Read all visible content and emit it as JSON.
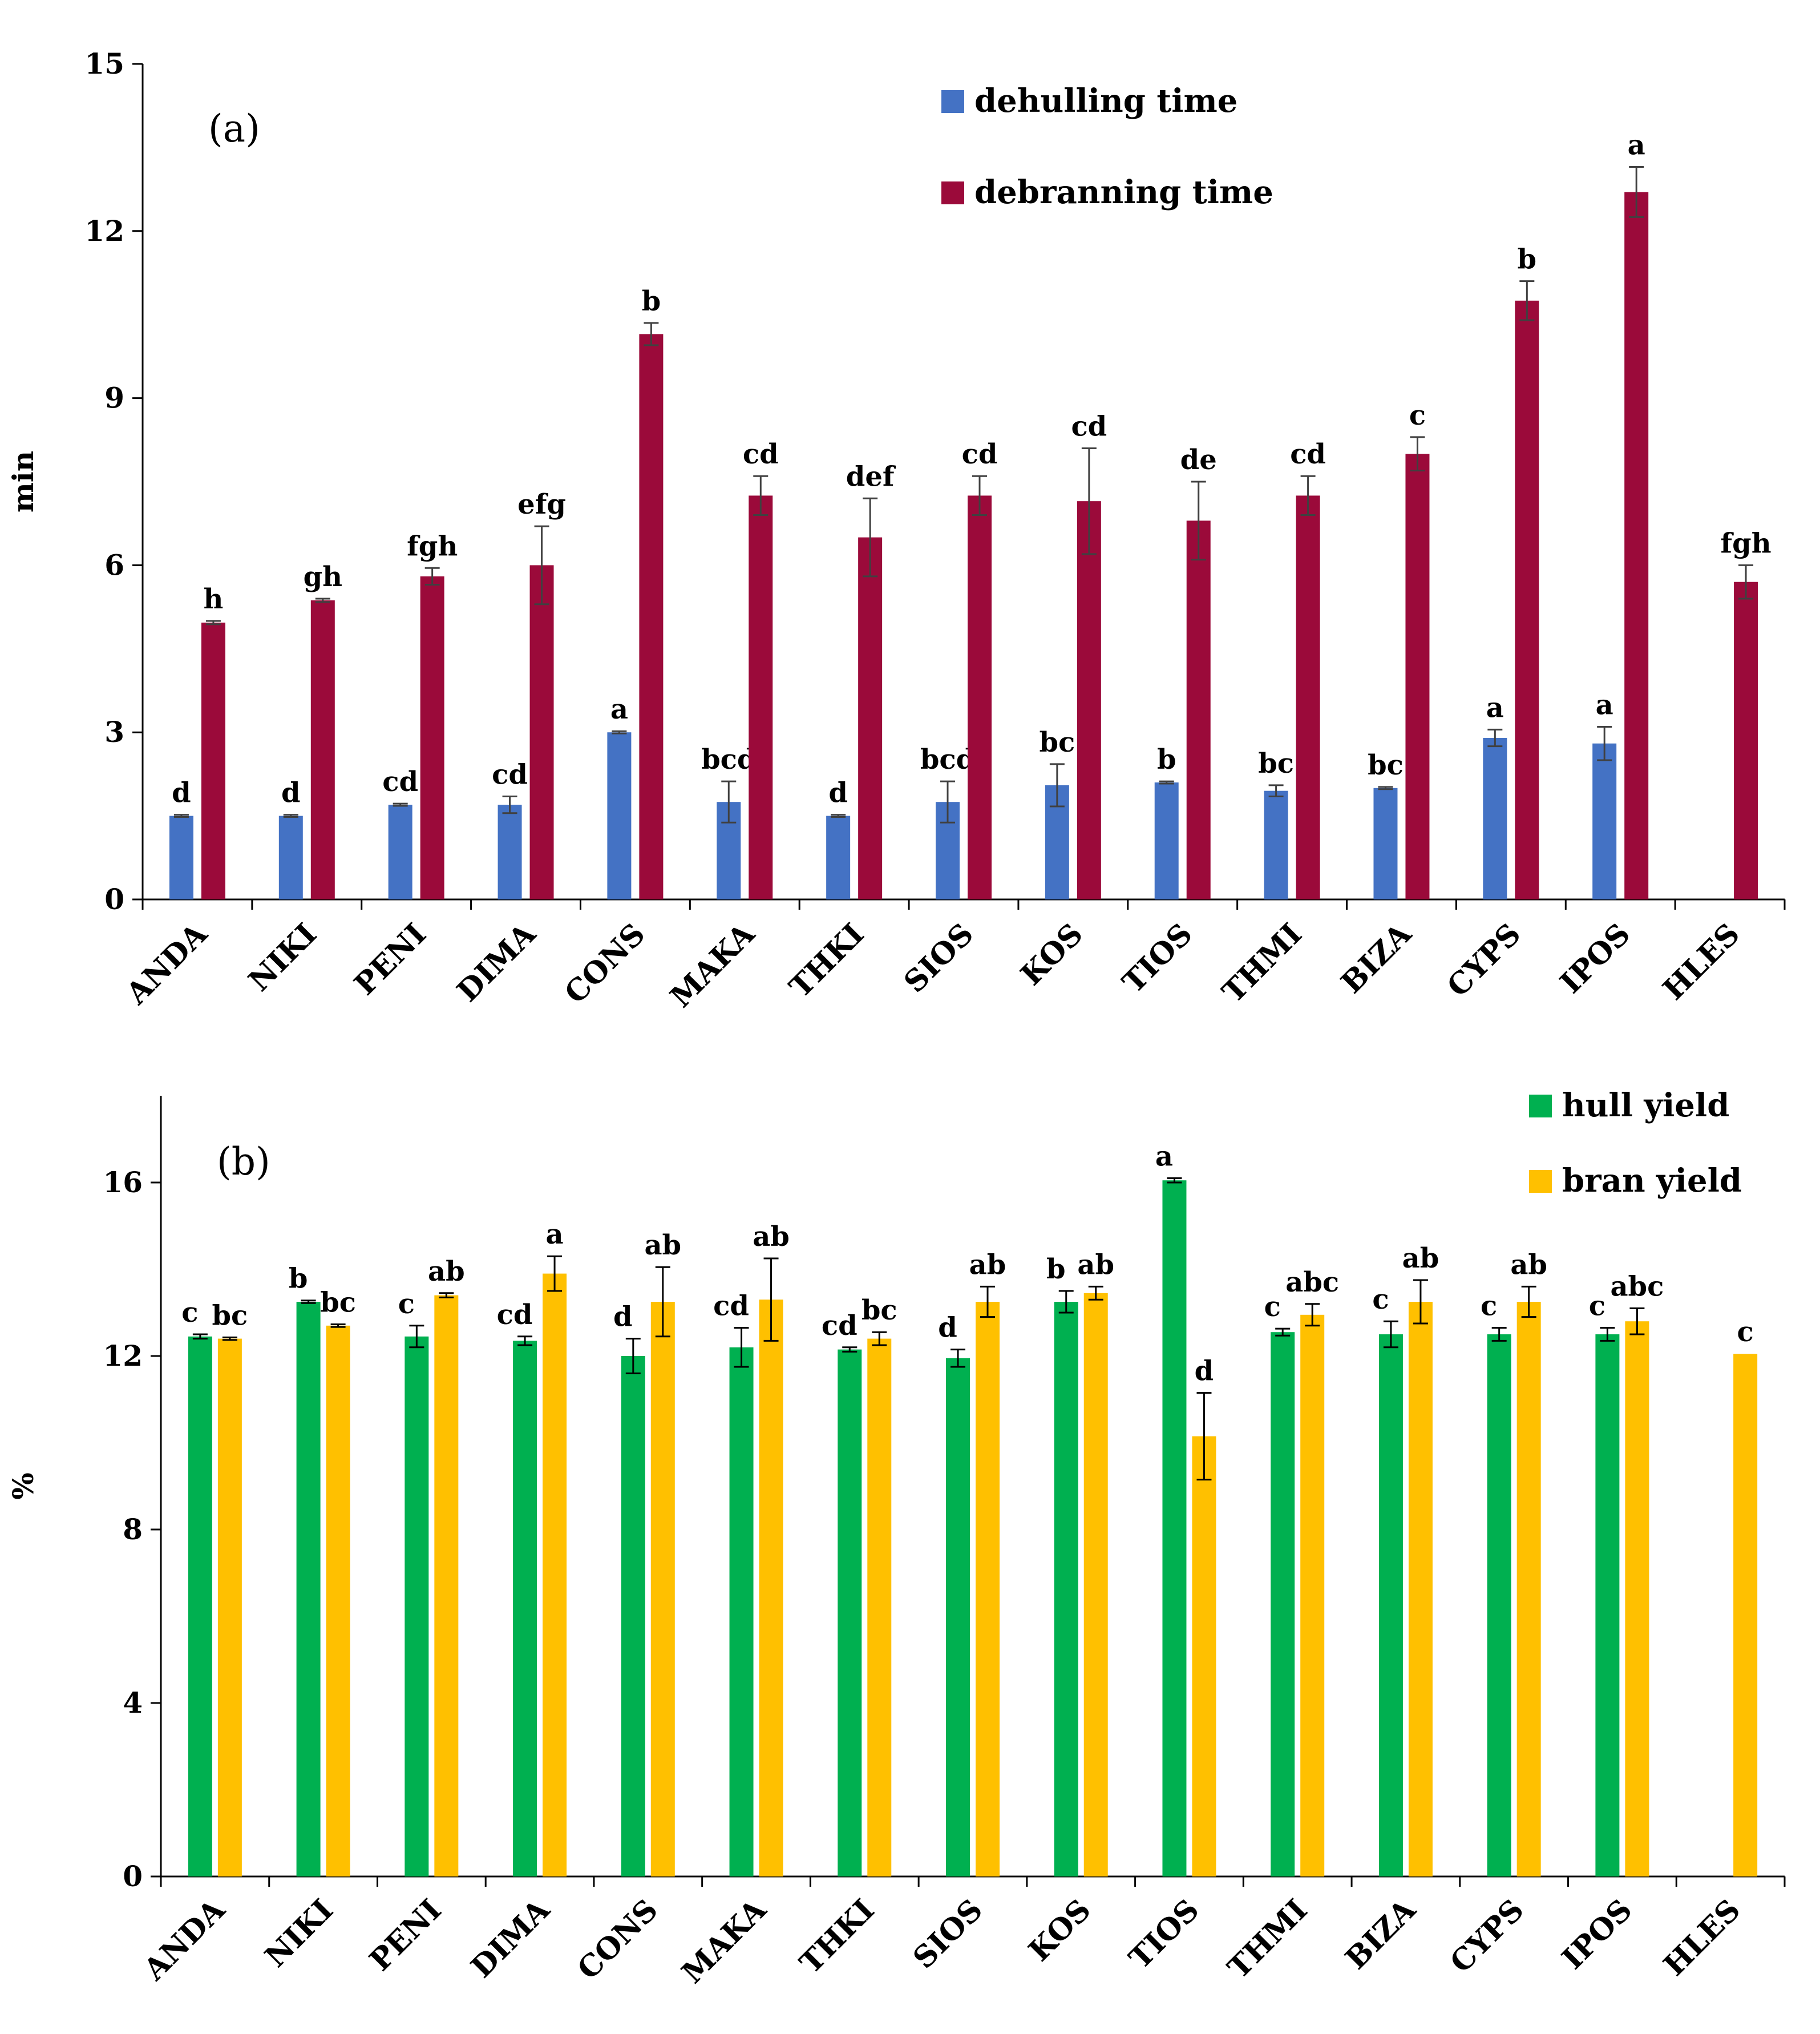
{
  "chart_data": [
    {
      "type": "bar",
      "panel": "(a)",
      "ylabel": "min",
      "ylim": [
        0,
        15
      ],
      "yticks": [
        "0",
        "3",
        "6",
        "9",
        "12",
        "15"
      ],
      "categories": [
        "ANDA",
        "NIKI",
        "PENI",
        "DIMA",
        "CONS",
        "MAKA",
        "THKI",
        "SIOS",
        "KOS",
        "TIOS",
        "THMI",
        "BIZA",
        "CYPS",
        "IPOS",
        "HLES"
      ],
      "legend_position": "top-right",
      "series": [
        {
          "name": "dehulling time",
          "color": "#4472C4",
          "values": [
            1.5,
            1.5,
            1.7,
            1.7,
            3.0,
            1.75,
            1.5,
            1.75,
            2.05,
            2.1,
            1.95,
            2.0,
            2.9,
            2.8,
            null
          ],
          "errors": [
            0.02,
            0.02,
            0.02,
            0.15,
            0.02,
            0.37,
            0.02,
            0.37,
            0.38,
            0.02,
            0.1,
            0.02,
            0.15,
            0.3,
            null
          ],
          "sig": [
            "d",
            "d",
            "cd",
            "cd",
            "a",
            "bcd",
            "d",
            "bcd",
            "bc",
            "b",
            "bc",
            "bc",
            "a",
            "a",
            ""
          ]
        },
        {
          "name": "debranning time",
          "color": "#9B0A3A",
          "values": [
            4.97,
            5.37,
            5.8,
            6.0,
            10.15,
            7.25,
            6.5,
            7.25,
            7.15,
            6.8,
            7.25,
            8.0,
            10.75,
            12.7,
            5.7
          ],
          "errors": [
            0.03,
            0.03,
            0.15,
            0.7,
            0.2,
            0.35,
            0.7,
            0.35,
            0.95,
            0.7,
            0.35,
            0.3,
            0.35,
            0.45,
            0.3
          ],
          "sig": [
            "h",
            "gh",
            "fgh",
            "efg",
            "b",
            "cd",
            "def",
            "cd",
            "cd",
            "de",
            "cd",
            "c",
            "b",
            "a",
            "fgh"
          ]
        }
      ]
    },
    {
      "type": "bar",
      "panel": "(b)",
      "ylabel": "%",
      "ylim": [
        0,
        18
      ],
      "yticks": [
        "0",
        "4",
        "8",
        "12",
        "16"
      ],
      "categories": [
        "ANDA",
        "NIKI",
        "PENI",
        "DIMA",
        "CONS",
        "MAKA",
        "THKI",
        "SIOS",
        "KOS",
        "TIOS",
        "THMI",
        "BIZA",
        "CYPS",
        "IPOS",
        "HLES"
      ],
      "legend_position": "top-right",
      "series": [
        {
          "name": "hull yield",
          "color": "#00B050",
          "values": [
            12.45,
            13.25,
            12.45,
            12.35,
            12.0,
            12.2,
            12.15,
            11.95,
            13.25,
            16.05,
            12.55,
            12.5,
            12.5,
            12.5,
            null
          ],
          "errors": [
            0.05,
            0.03,
            0.25,
            0.1,
            0.4,
            0.45,
            0.05,
            0.2,
            0.25,
            0.05,
            0.08,
            0.3,
            0.15,
            0.15,
            null
          ],
          "sig": [
            "c",
            "b",
            "c",
            "cd",
            "d",
            "cd",
            "cd",
            "d",
            "b",
            "a",
            "c",
            "c",
            "c",
            "c",
            ""
          ]
        },
        {
          "name": "bran yield",
          "color": "#FFC000",
          "values": [
            12.4,
            12.7,
            13.4,
            13.9,
            13.25,
            13.3,
            12.4,
            13.25,
            13.45,
            10.15,
            12.95,
            13.25,
            13.25,
            12.8,
            12.05
          ],
          "errors": [
            0.03,
            0.03,
            0.05,
            0.4,
            0.8,
            0.95,
            0.15,
            0.35,
            0.15,
            1.0,
            0.25,
            0.5,
            0.35,
            0.3,
            null
          ],
          "sig": [
            "bc",
            "bc",
            "ab",
            "a",
            "ab",
            "ab",
            "bc",
            "ab",
            "ab",
            "d",
            "abc",
            "ab",
            "ab",
            "abc",
            "c"
          ]
        }
      ]
    }
  ]
}
